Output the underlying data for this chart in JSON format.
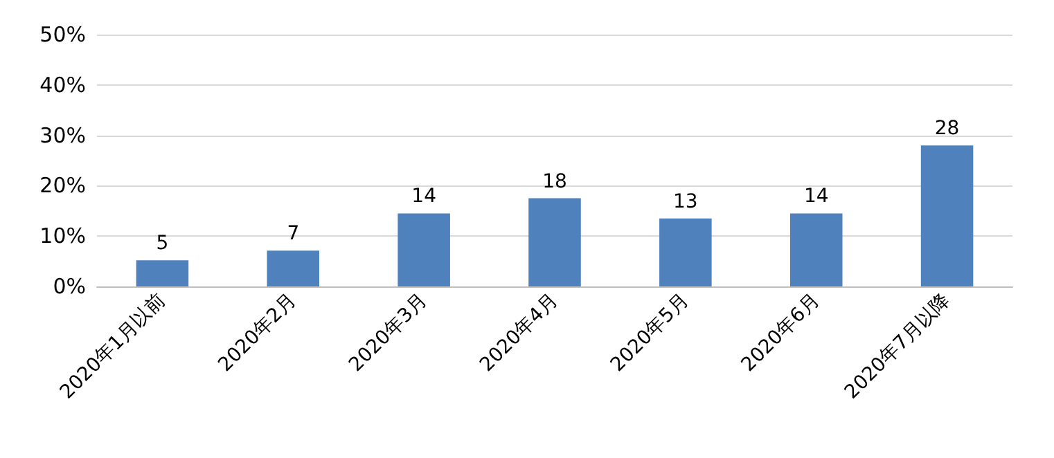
{
  "chart_data": {
    "type": "bar",
    "categories": [
      "2020年1月以前",
      "2020年2月",
      "2020年3月",
      "2020年4月",
      "2020年5月",
      "2020年6月",
      "2020年7月以降"
    ],
    "values": [
      5.2,
      7.1,
      14.5,
      17.5,
      13.5,
      14.5,
      28
    ],
    "value_labels": [
      "5",
      "7",
      "14",
      "18",
      "13",
      "14",
      "28"
    ],
    "color": "#4f81bd",
    "ylim": [
      0,
      50
    ],
    "yticks": [
      {
        "value": 0,
        "label": "0%"
      },
      {
        "value": 10,
        "label": "10%"
      },
      {
        "value": 20,
        "label": "20%"
      },
      {
        "value": 30,
        "label": "30%"
      },
      {
        "value": 40,
        "label": "40%"
      },
      {
        "value": 50,
        "label": "50%"
      }
    ],
    "grid": "y"
  }
}
